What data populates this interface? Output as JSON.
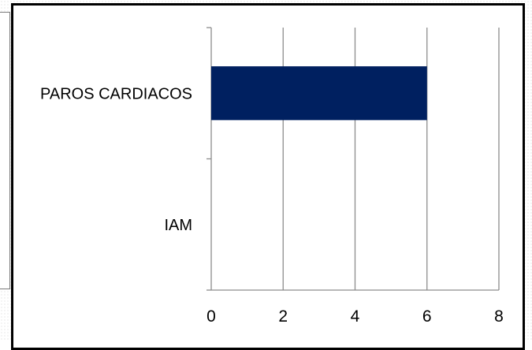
{
  "chart_data": {
    "type": "bar",
    "orientation": "horizontal",
    "categories": [
      "IAM",
      "PAROS CARDIACOS"
    ],
    "series": [
      {
        "values": [
          0,
          6
        ],
        "color": "#002060"
      }
    ],
    "xlim": [
      0,
      8
    ],
    "xticks": [
      0,
      2,
      4,
      6,
      8
    ],
    "title": "",
    "xlabel": "",
    "ylabel": "",
    "grid": "vertical",
    "legend": "none"
  }
}
